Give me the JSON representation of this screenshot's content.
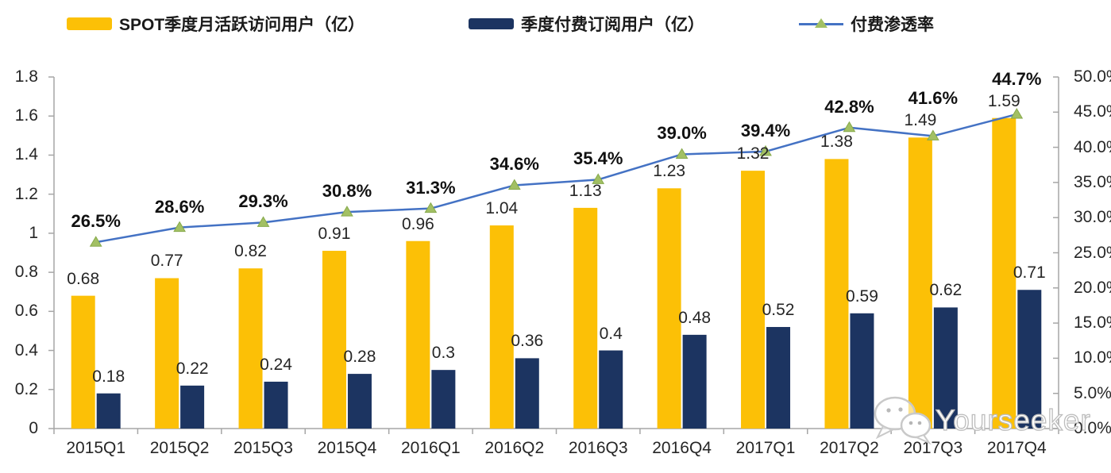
{
  "legend": {
    "items": [
      {
        "label": "SPOT季度月活跃访问用户（亿）",
        "swatch": "bar",
        "color": "#FCC006"
      },
      {
        "label": "季度付费订阅用户（亿）",
        "swatch": "bar",
        "color": "#1C3461"
      },
      {
        "label": "付费渗透率",
        "swatch": "line-triangle-marker",
        "color": "#4472C4",
        "marker_color": "#A2C064"
      }
    ]
  },
  "watermark": {
    "text": "Yourseeker",
    "icon": "wechat-chat-bubbles-icon"
  },
  "chart_data": {
    "type": "combo-bar-line",
    "title": "",
    "xlabel": "",
    "ylabel_left": "",
    "ylabel_right": "",
    "grid": false,
    "legend_position": "top",
    "categories": [
      "2015Q1",
      "2015Q2",
      "2015Q3",
      "2015Q4",
      "2016Q1",
      "2016Q2",
      "2016Q3",
      "2016Q4",
      "2017Q1",
      "2017Q2",
      "2017Q3",
      "2017Q4"
    ],
    "series": [
      {
        "name": "SPOT季度月活跃访问用户（亿）",
        "type": "bar",
        "axis": "left",
        "color": "#FCC006",
        "values": [
          0.68,
          0.77,
          0.82,
          0.91,
          0.96,
          1.04,
          1.13,
          1.23,
          1.32,
          1.38,
          1.49,
          1.59
        ],
        "labels": [
          "0.68",
          "0.77",
          "0.82",
          "0.91",
          "0.96",
          "1.04",
          "1.13",
          "1.23",
          "1.32",
          "1.38",
          "1.49",
          "1.59"
        ]
      },
      {
        "name": "季度付费订阅用户（亿）",
        "type": "bar",
        "axis": "left",
        "color": "#1C3461",
        "values": [
          0.18,
          0.22,
          0.24,
          0.28,
          0.3,
          0.36,
          0.4,
          0.48,
          0.52,
          0.59,
          0.62,
          0.71
        ],
        "labels": [
          "0.18",
          "0.22",
          "0.24",
          "0.28",
          "0.3",
          "0.36",
          "0.4",
          "0.48",
          "0.52",
          "0.59",
          "0.62",
          "0.71"
        ]
      },
      {
        "name": "付费渗透率",
        "type": "line",
        "axis": "right",
        "color": "#4472C4",
        "marker": "triangle",
        "marker_color": "#A2C064",
        "values": [
          26.5,
          28.6,
          29.3,
          30.8,
          31.3,
          34.6,
          35.4,
          39.0,
          39.4,
          42.8,
          41.6,
          44.7
        ],
        "labels": [
          "26.5%",
          "28.6%",
          "29.3%",
          "30.8%",
          "31.3%",
          "34.6%",
          "35.4%",
          "39.0%",
          "39.4%",
          "42.8%",
          "41.6%",
          "44.7%"
        ]
      }
    ],
    "left_axis": {
      "min": 0,
      "max": 1.8,
      "step": 0.2,
      "tick_labels": [
        "0",
        "0.2",
        "0.4",
        "0.6",
        "0.8",
        "1",
        "1.2",
        "1.4",
        "1.6",
        "1.8"
      ]
    },
    "right_axis": {
      "min": 0,
      "max": 50,
      "step": 5,
      "tick_labels": [
        "0.0%",
        "5.0%",
        "10.0%",
        "15.0%",
        "20.0%",
        "25.0%",
        "30.0%",
        "35.0%",
        "40.0%",
        "45.0%",
        "50.0%"
      ]
    },
    "axis_color": "#A6A6A6",
    "text_color": "#262626"
  }
}
